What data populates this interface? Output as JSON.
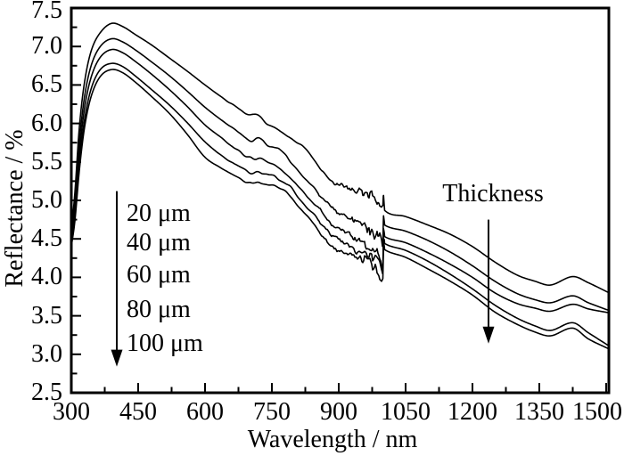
{
  "figure": {
    "background": "#ffffff",
    "ink": "#000000"
  },
  "chart_data": {
    "type": "line",
    "title": "",
    "xlabel": "Wavelength / nm",
    "ylabel": "Reflectance / %",
    "xlim": [
      300,
      1506
    ],
    "ylim": [
      2.5,
      7.5
    ],
    "grid": false,
    "frame": true,
    "x_major_ticks": [
      300,
      450,
      600,
      750,
      900,
      1050,
      1200,
      1350,
      1500
    ],
    "x_tick_labels": [
      "300",
      "450",
      "600",
      "750",
      "900",
      "1050",
      "1200",
      "1350",
      "1500"
    ],
    "x_minor_ticks": [
      375,
      525,
      675,
      825,
      975,
      1125,
      1275,
      1425
    ],
    "y_major_ticks": [
      7.5,
      7.0,
      6.5,
      6.0,
      5.5,
      5.0,
      4.5,
      4.0,
      3.5,
      3.0,
      2.5
    ],
    "y_tick_labels": [
      "7.5",
      "7.0",
      "6.5",
      "6.0",
      "5.5",
      "5.0",
      "4.5",
      "4.0",
      "3.5",
      "3.0",
      "2.5"
    ],
    "y_minor_ticks": [
      7.25,
      6.75,
      6.25,
      5.75,
      5.25,
      4.75,
      4.25,
      3.75,
      3.25,
      2.75
    ],
    "legend": {
      "position": "inside-left",
      "x_nm": 424,
      "items": [
        {
          "label": "20 μm",
          "r": 4.83
        },
        {
          "label": "40 μm",
          "r": 4.44
        },
        {
          "label": "60 μm",
          "r": 4.03
        },
        {
          "label": "80 μm",
          "r": 3.58
        },
        {
          "label": "100 μm",
          "r": 3.14
        }
      ],
      "arrow": {
        "x_nm": 402,
        "r_from": 5.12,
        "r_to": 2.84
      }
    },
    "annotation": {
      "text": "Thickness",
      "x_nm": 1246,
      "r": 5.08,
      "arrow": {
        "x_nm": 1236,
        "r_from": 4.75,
        "r_to": 3.14
      }
    },
    "noise_band": {
      "from_nm": 856,
      "to_nm": 1000,
      "max_amplitude": 0.09
    },
    "detector_jump_nm": 1000,
    "series": [
      {
        "name": "20 μm",
        "thickness_um": 20,
        "points": [
          [
            300,
            4.6
          ],
          [
            308,
            5.1
          ],
          [
            318,
            5.95
          ],
          [
            330,
            6.55
          ],
          [
            345,
            6.95
          ],
          [
            365,
            7.18
          ],
          [
            390,
            7.3
          ],
          [
            415,
            7.26
          ],
          [
            445,
            7.15
          ],
          [
            480,
            7.02
          ],
          [
            520,
            6.85
          ],
          [
            560,
            6.68
          ],
          [
            600,
            6.5
          ],
          [
            640,
            6.33
          ],
          [
            680,
            6.17
          ],
          [
            700,
            6.1
          ],
          [
            716,
            6.13
          ],
          [
            735,
            6.02
          ],
          [
            758,
            5.96
          ],
          [
            790,
            5.82
          ],
          [
            820,
            5.7
          ],
          [
            850,
            5.48
          ],
          [
            880,
            5.28
          ],
          [
            910,
            5.18
          ],
          [
            940,
            5.12
          ],
          [
            970,
            5.06
          ],
          [
            990,
            4.96
          ],
          [
            999,
            4.88
          ],
          [
            1000.5,
            5.06
          ],
          [
            1003,
            4.87
          ],
          [
            1050,
            4.79
          ],
          [
            1100,
            4.68
          ],
          [
            1150,
            4.56
          ],
          [
            1200,
            4.4
          ],
          [
            1250,
            4.2
          ],
          [
            1300,
            4.03
          ],
          [
            1340,
            3.95
          ],
          [
            1375,
            3.9
          ],
          [
            1425,
            4.01
          ],
          [
            1460,
            3.93
          ],
          [
            1506,
            3.8
          ]
        ]
      },
      {
        "name": "40 μm",
        "thickness_um": 40,
        "points": [
          [
            300,
            4.53
          ],
          [
            308,
            4.96
          ],
          [
            318,
            5.76
          ],
          [
            330,
            6.36
          ],
          [
            345,
            6.76
          ],
          [
            365,
            7.0
          ],
          [
            390,
            7.1
          ],
          [
            415,
            7.06
          ],
          [
            445,
            6.95
          ],
          [
            480,
            6.8
          ],
          [
            520,
            6.62
          ],
          [
            560,
            6.42
          ],
          [
            600,
            6.21
          ],
          [
            640,
            6.03
          ],
          [
            680,
            5.86
          ],
          [
            705,
            5.77
          ],
          [
            722,
            5.8
          ],
          [
            742,
            5.72
          ],
          [
            758,
            5.69
          ],
          [
            790,
            5.52
          ],
          [
            820,
            5.32
          ],
          [
            850,
            5.12
          ],
          [
            880,
            4.92
          ],
          [
            910,
            4.8
          ],
          [
            940,
            4.72
          ],
          [
            970,
            4.62
          ],
          [
            990,
            4.52
          ],
          [
            999,
            4.42
          ],
          [
            1000.5,
            4.78
          ],
          [
            1003,
            4.68
          ],
          [
            1050,
            4.6
          ],
          [
            1100,
            4.48
          ],
          [
            1150,
            4.33
          ],
          [
            1200,
            4.15
          ],
          [
            1250,
            3.95
          ],
          [
            1300,
            3.79
          ],
          [
            1340,
            3.71
          ],
          [
            1375,
            3.67
          ],
          [
            1425,
            3.76
          ],
          [
            1460,
            3.67
          ],
          [
            1506,
            3.57
          ]
        ]
      },
      {
        "name": "60 μm",
        "thickness_um": 60,
        "points": [
          [
            300,
            4.47
          ],
          [
            308,
            4.86
          ],
          [
            318,
            5.61
          ],
          [
            330,
            6.21
          ],
          [
            345,
            6.61
          ],
          [
            365,
            6.86
          ],
          [
            390,
            6.96
          ],
          [
            415,
            6.92
          ],
          [
            445,
            6.8
          ],
          [
            480,
            6.64
          ],
          [
            520,
            6.44
          ],
          [
            560,
            6.22
          ],
          [
            600,
            5.98
          ],
          [
            640,
            5.8
          ],
          [
            680,
            5.62
          ],
          [
            705,
            5.54
          ],
          [
            722,
            5.56
          ],
          [
            742,
            5.5
          ],
          [
            758,
            5.46
          ],
          [
            790,
            5.31
          ],
          [
            820,
            5.1
          ],
          [
            850,
            4.93
          ],
          [
            880,
            4.72
          ],
          [
            910,
            4.6
          ],
          [
            940,
            4.5
          ],
          [
            970,
            4.4
          ],
          [
            990,
            4.28
          ],
          [
            999,
            4.15
          ],
          [
            1000.5,
            4.62
          ],
          [
            1003,
            4.53
          ],
          [
            1050,
            4.45
          ],
          [
            1100,
            4.32
          ],
          [
            1150,
            4.17
          ],
          [
            1200,
            4.0
          ],
          [
            1250,
            3.8
          ],
          [
            1300,
            3.66
          ],
          [
            1340,
            3.6
          ],
          [
            1375,
            3.56
          ],
          [
            1425,
            3.65
          ],
          [
            1460,
            3.59
          ],
          [
            1506,
            3.54
          ]
        ]
      },
      {
        "name": "80 μm",
        "thickness_um": 80,
        "points": [
          [
            300,
            4.43
          ],
          [
            308,
            4.79
          ],
          [
            318,
            5.49
          ],
          [
            330,
            6.06
          ],
          [
            345,
            6.46
          ],
          [
            365,
            6.7
          ],
          [
            390,
            6.78
          ],
          [
            415,
            6.74
          ],
          [
            445,
            6.61
          ],
          [
            480,
            6.44
          ],
          [
            520,
            6.24
          ],
          [
            560,
            6.01
          ],
          [
            600,
            5.76
          ],
          [
            640,
            5.57
          ],
          [
            680,
            5.42
          ],
          [
            705,
            5.35
          ],
          [
            722,
            5.37
          ],
          [
            742,
            5.33
          ],
          [
            758,
            5.3
          ],
          [
            790,
            5.18
          ],
          [
            820,
            4.95
          ],
          [
            850,
            4.78
          ],
          [
            880,
            4.58
          ],
          [
            910,
            4.45
          ],
          [
            940,
            4.35
          ],
          [
            970,
            4.27
          ],
          [
            990,
            4.15
          ],
          [
            999,
            4.05
          ],
          [
            1000.5,
            4.52
          ],
          [
            1003,
            4.44
          ],
          [
            1050,
            4.35
          ],
          [
            1100,
            4.21
          ],
          [
            1150,
            4.04
          ],
          [
            1200,
            3.85
          ],
          [
            1250,
            3.64
          ],
          [
            1300,
            3.47
          ],
          [
            1340,
            3.37
          ],
          [
            1375,
            3.31
          ],
          [
            1425,
            3.41
          ],
          [
            1460,
            3.28
          ],
          [
            1506,
            3.11
          ]
        ]
      },
      {
        "name": "100 μm",
        "thickness_um": 100,
        "points": [
          [
            300,
            4.4
          ],
          [
            308,
            4.73
          ],
          [
            318,
            5.39
          ],
          [
            330,
            5.96
          ],
          [
            345,
            6.36
          ],
          [
            365,
            6.61
          ],
          [
            390,
            6.7
          ],
          [
            415,
            6.66
          ],
          [
            445,
            6.53
          ],
          [
            480,
            6.35
          ],
          [
            520,
            6.13
          ],
          [
            560,
            5.86
          ],
          [
            600,
            5.56
          ],
          [
            640,
            5.41
          ],
          [
            680,
            5.28
          ],
          [
            705,
            5.21
          ],
          [
            722,
            5.23
          ],
          [
            742,
            5.2
          ],
          [
            758,
            5.18
          ],
          [
            790,
            5.06
          ],
          [
            820,
            4.85
          ],
          [
            850,
            4.65
          ],
          [
            880,
            4.42
          ],
          [
            910,
            4.33
          ],
          [
            940,
            4.25
          ],
          [
            970,
            4.18
          ],
          [
            990,
            4.05
          ],
          [
            999,
            3.98
          ],
          [
            1000.5,
            4.44
          ],
          [
            1003,
            4.36
          ],
          [
            1050,
            4.26
          ],
          [
            1100,
            4.11
          ],
          [
            1150,
            3.95
          ],
          [
            1200,
            3.77
          ],
          [
            1250,
            3.55
          ],
          [
            1300,
            3.39
          ],
          [
            1340,
            3.29
          ],
          [
            1375,
            3.24
          ],
          [
            1425,
            3.34
          ],
          [
            1460,
            3.2
          ],
          [
            1506,
            3.07
          ]
        ]
      }
    ]
  }
}
